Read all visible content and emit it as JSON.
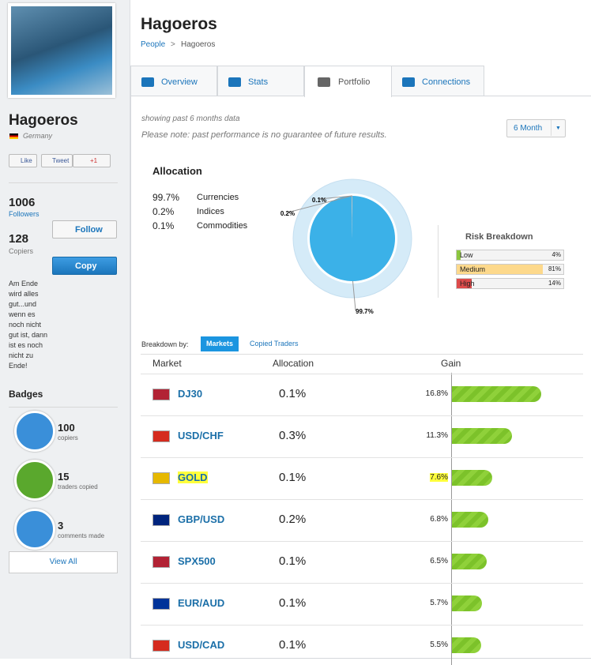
{
  "profile": {
    "name": "Hagoeros",
    "country": "Germany",
    "social": [
      "Like",
      "Tweet",
      "+1"
    ],
    "stats": [
      {
        "count": "1006",
        "label": "Followers"
      },
      {
        "count": "128",
        "label": "Copiers"
      }
    ],
    "buttons": [
      "Follow",
      "Copy"
    ],
    "bio": "Am Ende wird alles gut...und wenn es noch nicht gut ist, dann ist es noch nicht zu Ende!",
    "badges_title": "Badges",
    "badges": [
      {
        "count": "100",
        "label": "copiers"
      },
      {
        "count": "15",
        "label": "traders copied"
      },
      {
        "count": "3",
        "label": "comments made"
      }
    ],
    "view_all": "View All"
  },
  "header": {
    "title": "Hagoeros",
    "breadcrumb": [
      "People",
      "Hagoeros"
    ],
    "separator": ">"
  },
  "tabs": [
    "Overview",
    "Stats",
    "Portfolio",
    "Connections"
  ],
  "active_tab": 2,
  "notes": [
    "showing past 6 months data",
    "Please note: past performance is no guarantee of future results."
  ],
  "period": "6 Month",
  "allocation": {
    "title": "Allocation",
    "items": [
      {
        "name": "Currencies",
        "value": 99.7,
        "label": "99.7%",
        "color": "#3bb1e8"
      },
      {
        "name": "Indices",
        "value": 0.2,
        "label": "0.2%",
        "color": "#9a9a9a"
      },
      {
        "name": "Commodities",
        "value": 0.1,
        "label": "0.1%",
        "color": "#cfcfcf"
      }
    ]
  },
  "risk": {
    "title": "Risk Breakdown",
    "items": [
      {
        "name": "Low",
        "value": 4,
        "label": "4%",
        "color": "#8cc63f"
      },
      {
        "name": "Medium",
        "value": 81,
        "label": "81%",
        "color": "#fdd98c"
      },
      {
        "name": "High",
        "value": 14,
        "label": "14%",
        "color": "#dd4b4b"
      }
    ]
  },
  "breakdown": {
    "label": "Breakdown by:",
    "options": [
      "Markets",
      "Copied Traders"
    ],
    "active": 0
  },
  "table": {
    "columns": [
      "Market",
      "Allocation",
      "Gain"
    ],
    "highlighted_row": 2,
    "rows": [
      {
        "market": "DJ30",
        "allocation": "0.1%",
        "gain": {
          "value": 16.8,
          "label": "16.8%"
        }
      },
      {
        "market": "USD/CHF",
        "allocation": "0.3%",
        "gain": {
          "value": 11.3,
          "label": "11.3%"
        }
      },
      {
        "market": "GOLD",
        "allocation": "0.1%",
        "gain": {
          "value": 7.6,
          "label": "7.6%"
        }
      },
      {
        "market": "GBP/USD",
        "allocation": "0.2%",
        "gain": {
          "value": 6.8,
          "label": "6.8%"
        }
      },
      {
        "market": "SPX500",
        "allocation": "0.1%",
        "gain": {
          "value": 6.5,
          "label": "6.5%"
        }
      },
      {
        "market": "EUR/AUD",
        "allocation": "0.1%",
        "gain": {
          "value": 5.7,
          "label": "5.7%"
        }
      },
      {
        "market": "USD/CAD",
        "allocation": "0.1%",
        "gain": {
          "value": 5.5,
          "label": "5.5%"
        }
      }
    ]
  }
}
